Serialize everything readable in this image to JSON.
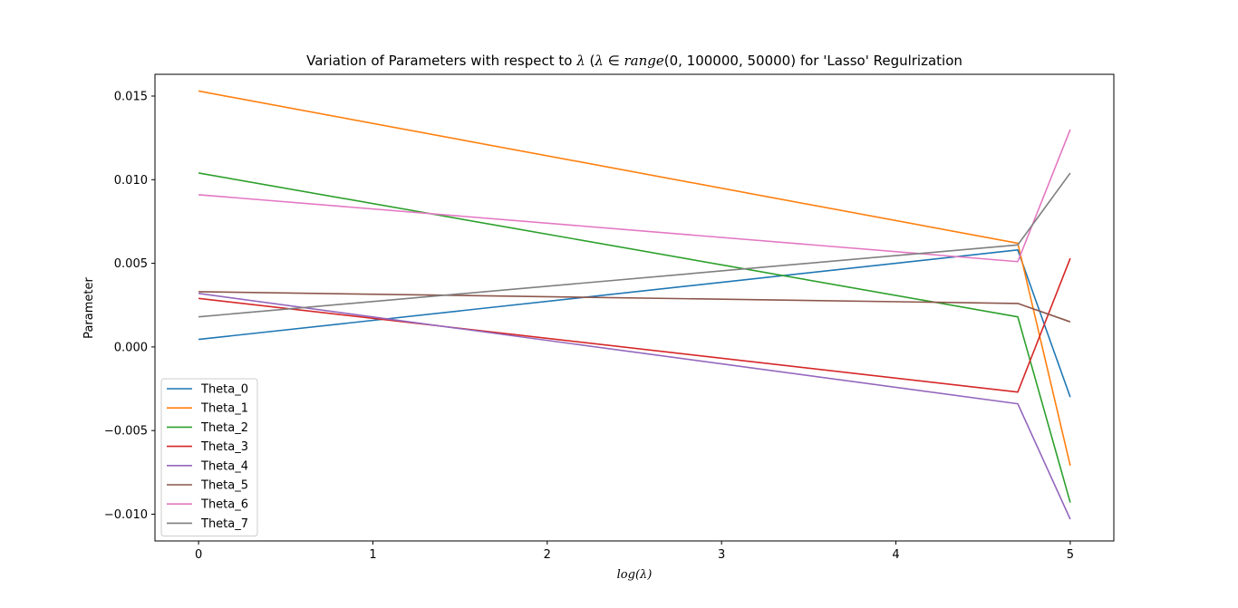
{
  "chart_data": {
    "type": "line",
    "title": {
      "prefix": "Variation of Parameters with respect to ",
      "math_parts": [
        {
          "text": "λ",
          "italic": true
        },
        {
          "text": " (",
          "italic": false
        },
        {
          "text": "λ",
          "italic": true
        },
        {
          "text": " ∈ ",
          "italic": false
        },
        {
          "text": "range",
          "italic": true
        },
        {
          "text": "(0, 100000, 50000)",
          "italic": false
        }
      ],
      "suffix": " for 'Lasso' Regulrization"
    },
    "xlabel": "log(λ)",
    "ylabel": "Parameter",
    "xlim": [
      -0.25,
      5.25
    ],
    "ylim": [
      -0.0116,
      0.0163
    ],
    "xticks": [
      0,
      1,
      2,
      3,
      4,
      5
    ],
    "xtick_labels": [
      "0",
      "1",
      "2",
      "3",
      "4",
      "5"
    ],
    "yticks": [
      -0.01,
      -0.005,
      0.0,
      0.005,
      0.01,
      0.015
    ],
    "ytick_labels": [
      "−0.010",
      "−0.005",
      "0.000",
      "0.005",
      "0.010",
      "0.015"
    ],
    "grid": false,
    "legend_position": "lower-left",
    "x": [
      0,
      4.699,
      5
    ],
    "series": [
      {
        "name": "Theta_0",
        "color": "#1f77b4",
        "values": [
          0.00045,
          0.0058,
          -0.003
        ]
      },
      {
        "name": "Theta_1",
        "color": "#ff7f0e",
        "values": [
          0.0153,
          0.0062,
          -0.0071
        ]
      },
      {
        "name": "Theta_2",
        "color": "#2ca02c",
        "values": [
          0.0104,
          0.0018,
          -0.0093
        ]
      },
      {
        "name": "Theta_3",
        "color": "#d62728",
        "values": [
          0.0029,
          -0.0027,
          0.0053
        ]
      },
      {
        "name": "Theta_4",
        "color": "#9467bd",
        "values": [
          0.0032,
          -0.0034,
          -0.0103
        ]
      },
      {
        "name": "Theta_5",
        "color": "#8c564b",
        "values": [
          0.0033,
          0.0026,
          0.0015
        ]
      },
      {
        "name": "Theta_6",
        "color": "#e377c2",
        "values": [
          0.0091,
          0.0051,
          0.013
        ]
      },
      {
        "name": "Theta_7",
        "color": "#7f7f7f",
        "values": [
          0.0018,
          0.0061,
          0.0104
        ]
      }
    ]
  }
}
